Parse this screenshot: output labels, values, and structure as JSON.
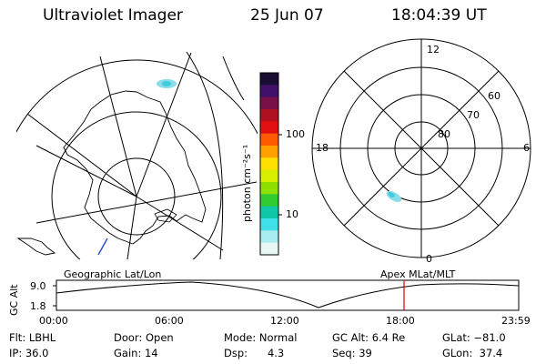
{
  "header": {
    "instrument": "Ultraviolet Imager",
    "date": "25 Jun 07",
    "time": "18:04:39 UT"
  },
  "colorbar": {
    "unit_label": "photon cm⁻²s⁻¹",
    "ticks": [
      "100",
      "10"
    ],
    "colors": [
      "#1a0d33",
      "#40106b",
      "#7a1048",
      "#b01020",
      "#e01010",
      "#ff5a00",
      "#ffa000",
      "#ffe000",
      "#d8f000",
      "#8ee000",
      "#30cc30",
      "#10c8a8",
      "#40e0e8",
      "#a8eef0",
      "#e8f6f6"
    ]
  },
  "left_map": {
    "label": "Geographic Lat/Lon"
  },
  "right_map": {
    "label": "Apex  MLat/MLT",
    "mlt_labels": {
      "top": "12",
      "left": "18",
      "right": "6",
      "bottom": "0"
    },
    "lat_labels": [
      "60",
      "70",
      "80"
    ]
  },
  "altitude_plot": {
    "ylabel": "GC Alt",
    "yticks": [
      "9.0",
      "1.8"
    ],
    "xticks": [
      "00:00",
      "06:00",
      "12:00",
      "18:00",
      "23:59"
    ],
    "current_time_marker": "18:04"
  },
  "footer": {
    "filter": "Flt: LBHL",
    "door": "Door: Open",
    "mode": "Mode: Normal",
    "gc_alt": "GC Alt: 6.4 Re",
    "glat": "GLat: −81.0",
    "ip": "IP: 36.0",
    "gain": "Gain: 14",
    "dsp": "Dsp:      4.3",
    "seq": "Seq: 39",
    "glon": "GLon:  37.4"
  }
}
